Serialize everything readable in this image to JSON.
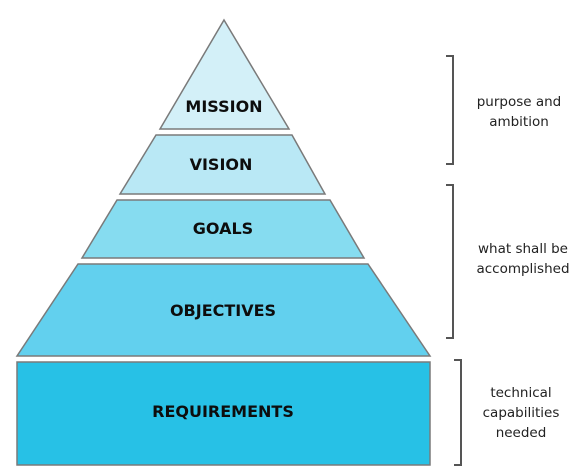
{
  "tiers": {
    "mission": {
      "label": "MISSION",
      "fill": "#d3f0f8"
    },
    "vision": {
      "label": "VISION",
      "fill": "#b9e8f5"
    },
    "goals": {
      "label": "GOALS",
      "fill": "#86dcf0"
    },
    "objectives": {
      "label": "OBJECTIVES",
      "fill": "#62d0ee"
    },
    "requirements": {
      "label": "REQUIREMENTS",
      "fill": "#27c1e6"
    }
  },
  "annotations": {
    "purpose": {
      "line1": "purpose and",
      "line2": "ambition"
    },
    "accomplish": {
      "line1": "what shall be",
      "line2": "accomplished"
    },
    "technical": {
      "line1": "technical",
      "line2": "capabilities",
      "line3": "needed"
    }
  },
  "colors": {
    "outline": "#7a7a7a",
    "bracket": "#555555"
  }
}
